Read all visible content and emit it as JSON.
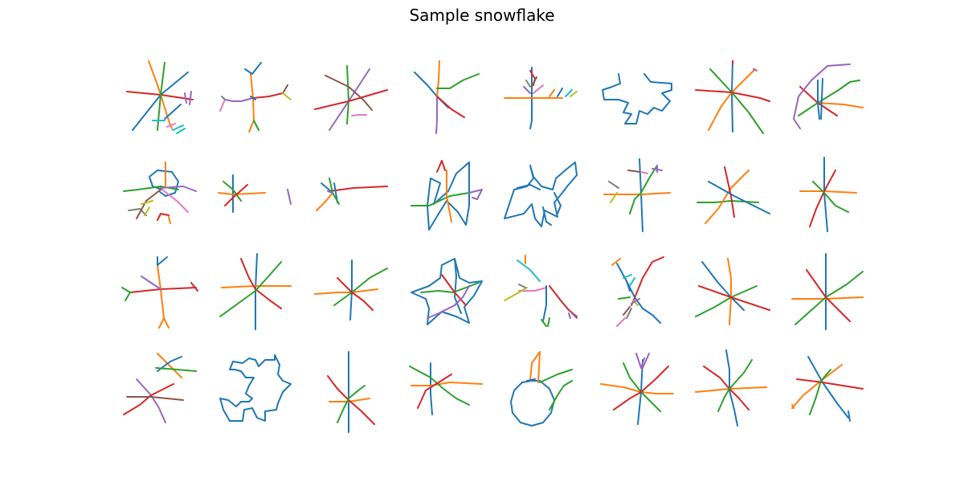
{
  "figure": {
    "title": "Sample snowflake",
    "rows": 4,
    "columns": 8
  },
  "stroke_colors": [
    "#1f77b4",
    "#ff7f0e",
    "#2ca02c",
    "#d62728",
    "#9467bd",
    "#8c564b",
    "#e377c2",
    "#7f7f7f",
    "#bcbd22",
    "#17becf"
  ]
}
